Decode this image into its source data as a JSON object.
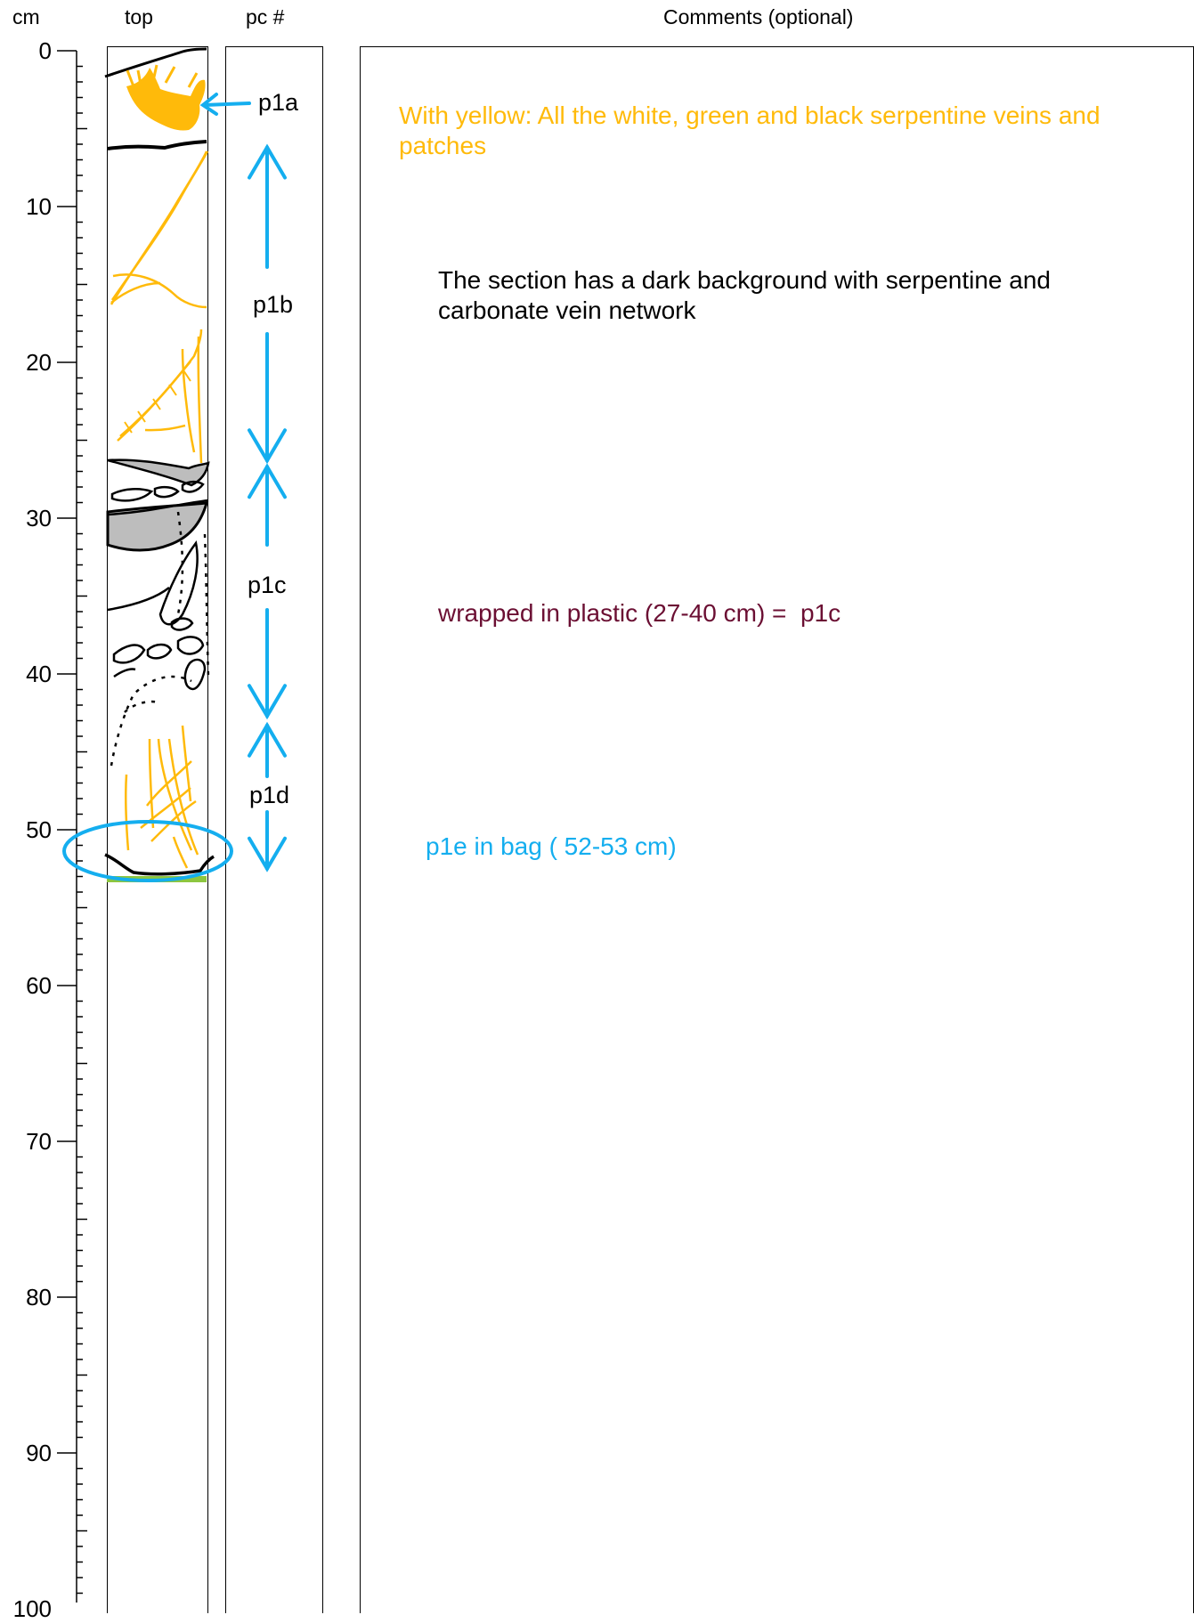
{
  "headers": {
    "cm": "cm",
    "top": "top",
    "pc": "pc #",
    "comments": "Comments (optional)"
  },
  "scale": {
    "unit": "cm",
    "min": 0,
    "max": 100,
    "major_labels": [
      "0",
      "10",
      "20",
      "30",
      "40",
      "50",
      "60",
      "70",
      "80",
      "90",
      "100"
    ]
  },
  "pieces": [
    {
      "id": "p1a",
      "label": "p1a"
    },
    {
      "id": "p1b",
      "label": "p1b",
      "from_cm": 6.2,
      "to_cm": 26.3
    },
    {
      "id": "p1c",
      "label": "p1c",
      "from_cm": 26.7,
      "to_cm": 42.7
    },
    {
      "id": "p1d",
      "label": "p1d",
      "from_cm": 43.3,
      "to_cm": 52.5
    }
  ],
  "comments": {
    "yellow_note": "With yellow: All the white, green and black serpentine veins and patches",
    "section_note": "The section has a dark background with serpentine and carbonate vein network",
    "plastic_note": "wrapped in plastic (27-40 cm) =  p1c",
    "bag_note": "p1e in bag ( 52-53 cm)"
  },
  "colors": {
    "yellow": "#FFBA0A",
    "blue": "#14AEEF",
    "maroon": "#6B0F33",
    "green": "#8DC63F",
    "gray": "#BDBDBD"
  }
}
